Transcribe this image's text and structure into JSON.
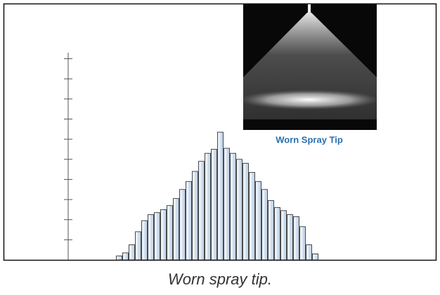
{
  "chart_data": {
    "type": "bar",
    "values": [
      0.2,
      0.35,
      0.75,
      1.4,
      1.95,
      2.25,
      2.35,
      2.5,
      2.7,
      3.05,
      3.5,
      3.9,
      4.4,
      4.9,
      5.3,
      5.5,
      6.35,
      5.55,
      5.3,
      5.0,
      4.8,
      4.35,
      3.9,
      3.5,
      2.95,
      2.6,
      2.45,
      2.25,
      2.15,
      1.65,
      0.75,
      0.3
    ],
    "color": "#c9d9ec",
    "ylim": [
      0,
      10.3
    ],
    "yticks": [
      1,
      2,
      3,
      4,
      5,
      6,
      7,
      8,
      9,
      10
    ],
    "inset_caption": "Worn Spray Tip",
    "caption": "Worn spray tip."
  }
}
